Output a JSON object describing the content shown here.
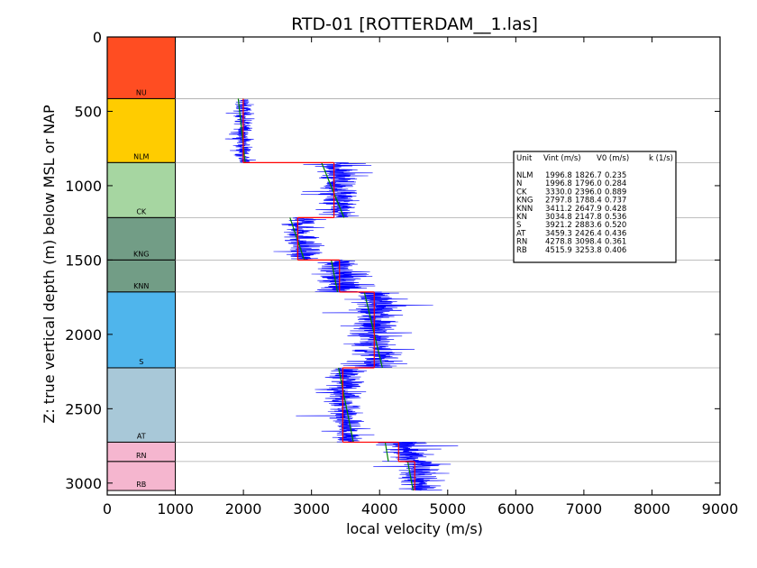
{
  "chart_data": {
    "type": "line",
    "title": "RTD-01 [ROTTERDAM__1.las]",
    "xlabel": "local velocity (m/s)",
    "ylabel": "Z: true vertical depth (m) below MSL or NAP",
    "xlim": [
      0,
      9000
    ],
    "ylim": [
      3080,
      0
    ],
    "x_ticks": [
      "0",
      "1000",
      "2000",
      "3000",
      "4000",
      "5000",
      "6000",
      "7000",
      "8000",
      "9000"
    ],
    "y_ticks": [
      "0",
      "500",
      "1000",
      "1500",
      "2000",
      "2500",
      "3000"
    ],
    "units": [
      {
        "name": "NU",
        "top": 0,
        "bottom": 415,
        "color": "#ff4d22"
      },
      {
        "name": "NLM",
        "top": 415,
        "bottom": 845,
        "color": "#ffcc00"
      },
      {
        "name": "CK",
        "top": 845,
        "bottom": 1215,
        "color": "#a6d6a1"
      },
      {
        "name": "KNG",
        "top": 1215,
        "bottom": 1500,
        "color": "#729d86"
      },
      {
        "name": "KNN",
        "top": 1500,
        "bottom": 1715,
        "color": "#729d86"
      },
      {
        "name": "S",
        "top": 1715,
        "bottom": 2225,
        "color": "#4fb5ec"
      },
      {
        "name": "AT",
        "top": 2225,
        "bottom": 2725,
        "color": "#a8c8d8"
      },
      {
        "name": "RN",
        "top": 2725,
        "bottom": 2855,
        "color": "#f5b6cf"
      },
      {
        "name": "RB",
        "top": 2855,
        "bottom": 3050,
        "color": "#f5b6cf"
      }
    ],
    "legend_table": {
      "header": [
        "Unit",
        "Vint (m/s)",
        "V0 (m/s)",
        "k (1/s)"
      ],
      "rows": [
        [
          "NLM",
          "1996.8",
          "1826.7",
          "0.235"
        ],
        [
          "N",
          "1996.8",
          "1796.0",
          "0.284"
        ],
        [
          "CK",
          "3330.0",
          "2396.0",
          "0.889"
        ],
        [
          "KNG",
          "2797.8",
          "1788.4",
          "0.737"
        ],
        [
          "KNN",
          "3411.2",
          "2647.9",
          "0.428"
        ],
        [
          "KN",
          "3034.8",
          "2147.8",
          "0.536"
        ],
        [
          "S",
          "3921.2",
          "2883.6",
          "0.520"
        ],
        [
          "AT",
          "3459.3",
          "2426.4",
          "0.436"
        ],
        [
          "RN",
          "4278.8",
          "3098.4",
          "0.361"
        ],
        [
          "RB",
          "4515.9",
          "3253.8",
          "0.406"
        ]
      ]
    },
    "velocity_log_segments": [
      {
        "top": 420,
        "bottom": 845,
        "mean": 2000,
        "noise": 150
      },
      {
        "top": 845,
        "bottom": 1215,
        "mean": 3380,
        "noise": 350
      },
      {
        "top": 1215,
        "bottom": 1500,
        "mean": 2850,
        "noise": 300
      },
      {
        "top": 1500,
        "bottom": 1715,
        "mean": 3450,
        "noise": 400
      },
      {
        "top": 1715,
        "bottom": 2225,
        "mean": 3950,
        "noise": 450
      },
      {
        "top": 2225,
        "bottom": 2725,
        "mean": 3500,
        "noise": 300
      },
      {
        "top": 2725,
        "bottom": 2855,
        "mean": 4400,
        "noise": 400
      },
      {
        "top": 2855,
        "bottom": 3050,
        "mean": 4600,
        "noise": 350
      }
    ],
    "interval_velocity": [
      {
        "top": 415,
        "bottom": 845,
        "v": 1996.8
      },
      {
        "top": 845,
        "bottom": 1215,
        "v": 3330.0
      },
      {
        "top": 1215,
        "bottom": 1500,
        "v": 2797.8
      },
      {
        "top": 1500,
        "bottom": 1715,
        "v": 3411.2
      },
      {
        "top": 1715,
        "bottom": 2225,
        "v": 3921.2
      },
      {
        "top": 2225,
        "bottom": 2725,
        "v": 3459.3
      },
      {
        "top": 2725,
        "bottom": 2855,
        "v": 4278.8
      },
      {
        "top": 2855,
        "bottom": 3050,
        "v": 4515.9
      }
    ],
    "v0k_fit": [
      {
        "top": 415,
        "bottom": 845,
        "v0": 1826.7,
        "k": 0.235
      },
      {
        "top": 845,
        "bottom": 1215,
        "v0": 2396.0,
        "k": 0.889
      },
      {
        "top": 1215,
        "bottom": 1500,
        "v0": 1788.4,
        "k": 0.737
      },
      {
        "top": 1500,
        "bottom": 1715,
        "v0": 2647.9,
        "k": 0.428
      },
      {
        "top": 1715,
        "bottom": 2225,
        "v0": 2883.6,
        "k": 0.52
      },
      {
        "top": 2225,
        "bottom": 2725,
        "v0": 2426.4,
        "k": 0.436
      },
      {
        "top": 2725,
        "bottom": 2855,
        "v0": 3098.4,
        "k": 0.361
      },
      {
        "top": 2855,
        "bottom": 3050,
        "v0": 3253.8,
        "k": 0.406
      }
    ],
    "colors": {
      "log": "#0000ff",
      "interval": "#ff0000",
      "fit": "#008000",
      "boundary": "#aaaaaa"
    }
  }
}
